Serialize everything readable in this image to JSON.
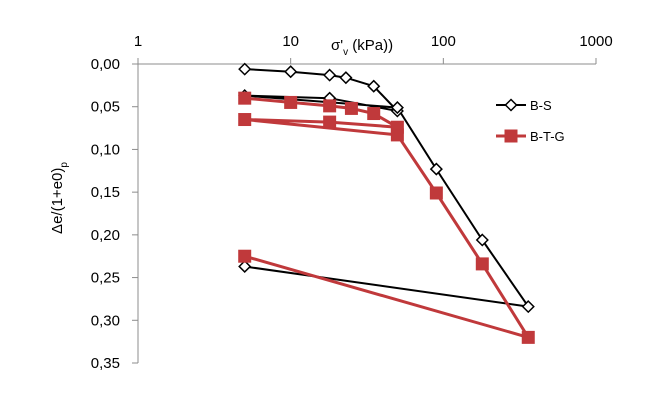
{
  "chart_data": {
    "type": "line",
    "title": "",
    "xscale": "log",
    "xlabel": "σ'v (kPa))",
    "xlabel_parts": {
      "sigma": "σ'",
      "sub": "v",
      "unit": " (kPa))"
    },
    "ylabel": "Δe/(1+e0)p",
    "ylabel_parts": {
      "main": "Δe/(1+e0)",
      "sub": "p"
    },
    "xlim": [
      1,
      1000
    ],
    "ylim": [
      0,
      0.35
    ],
    "y_inverted": true,
    "x_axis_position": "top",
    "x_ticks": [
      1,
      10,
      100,
      1000
    ],
    "x_tick_labels": [
      "1",
      "10",
      "100",
      "1000"
    ],
    "y_ticks": [
      0,
      0.05,
      0.1,
      0.15,
      0.2,
      0.25,
      0.3,
      0.35
    ],
    "y_tick_labels": [
      "0,00",
      "0,05",
      "0,10",
      "0,15",
      "0,20",
      "0,25",
      "0,30",
      "0,35"
    ],
    "grid": false,
    "legend_position": "right",
    "series": [
      {
        "name": "B-S",
        "color": "#000000",
        "marker": "diamond-open",
        "points": [
          {
            "x": 5,
            "y": 0.006
          },
          {
            "x": 10,
            "y": 0.009
          },
          {
            "x": 18,
            "y": 0.013
          },
          {
            "x": 23,
            "y": 0.016
          },
          {
            "x": 35,
            "y": 0.026
          },
          {
            "x": 50,
            "y": 0.055
          },
          {
            "x": 18,
            "y": 0.04
          },
          {
            "x": 5,
            "y": 0.037
          },
          {
            "x": 50,
            "y": 0.051
          },
          {
            "x": 90,
            "y": 0.123
          },
          {
            "x": 180,
            "y": 0.206
          },
          {
            "x": 360,
            "y": 0.284
          },
          {
            "x": 5,
            "y": 0.237
          }
        ]
      },
      {
        "name": "B-T-G",
        "color": "#c0393b",
        "marker": "square",
        "points": [
          {
            "x": 5,
            "y": 0.04
          },
          {
            "x": 10,
            "y": 0.045
          },
          {
            "x": 18,
            "y": 0.049
          },
          {
            "x": 25,
            "y": 0.052
          },
          {
            "x": 35,
            "y": 0.058
          },
          {
            "x": 50,
            "y": 0.074
          },
          {
            "x": 18,
            "y": 0.068
          },
          {
            "x": 5,
            "y": 0.065
          },
          {
            "x": 50,
            "y": 0.083
          },
          {
            "x": 90,
            "y": 0.151
          },
          {
            "x": 180,
            "y": 0.234
          },
          {
            "x": 360,
            "y": 0.32
          },
          {
            "x": 5,
            "y": 0.225
          }
        ]
      }
    ]
  }
}
